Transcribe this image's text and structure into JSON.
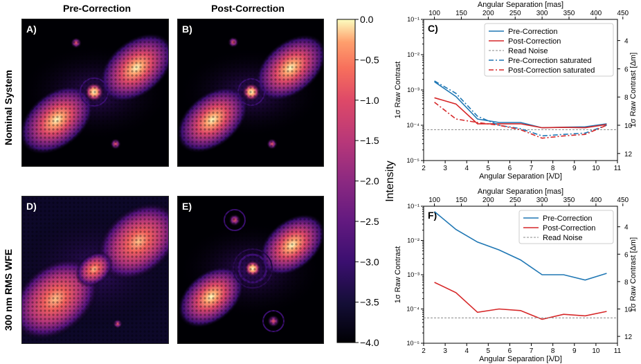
{
  "columns": {
    "pre": "Pre-Correction",
    "post": "Post-Correction"
  },
  "rows": {
    "nominal": "Nominal System",
    "wfe": "300 nm RMS WFE"
  },
  "panels": {
    "A": "A)",
    "B": "B)",
    "C": "C)",
    "D": "D)",
    "E": "E)",
    "F": "F)"
  },
  "colorbar": {
    "label": "Intensity",
    "ticks": [
      "0.0",
      "−0.5",
      "−1.0",
      "−1.5",
      "−2.0",
      "−2.5",
      "−3.0",
      "−3.5",
      "−4.0"
    ],
    "range": [
      -4.0,
      0.0
    ],
    "colormap": "magma"
  },
  "chart_data": [
    {
      "type": "line",
      "panel": "C)",
      "xlabel": "Angular Separation [λ/D]",
      "ylabel": "1σ Raw Contrast",
      "top_xlabel": "Angular Separation [mas]",
      "right_ylabel": "1σ Raw Contrast [Δm]",
      "xlim": [
        2,
        11
      ],
      "ylim": [
        1e-05,
        0.1
      ],
      "yscale": "log",
      "xticks": [
        "2",
        "3",
        "4",
        "5",
        "6",
        "7",
        "8",
        "9",
        "10",
        "11"
      ],
      "yticks": [
        "10⁻⁵",
        "10⁻⁴",
        "10⁻³",
        "10⁻²",
        "10⁻¹"
      ],
      "top_xticks": [
        "100",
        "150",
        "200",
        "250",
        "300",
        "350",
        "400",
        "450"
      ],
      "right_yticks": [
        "4",
        "6",
        "8",
        "10",
        "12"
      ],
      "legend_position": "top-right",
      "x": [
        2.5,
        3.5,
        4.5,
        5.5,
        6.5,
        7.5,
        8.5,
        9.5,
        10.5
      ],
      "series": [
        {
          "name": "Pre-Correction",
          "color": "#1f77b4",
          "dash": "solid",
          "values": [
            0.0017,
            0.00065,
            0.00015,
            0.00012,
            0.00012,
            8.5e-05,
            8.8e-05,
            9e-05,
            0.00011
          ]
        },
        {
          "name": "Post-Correction",
          "color": "#d62728",
          "dash": "solid",
          "values": [
            0.0006,
            0.0004,
            0.00011,
            0.00011,
            0.00011,
            8.5e-05,
            8.7e-05,
            8.5e-05,
            0.000105
          ]
        },
        {
          "name": "Read Noise",
          "color": "#888888",
          "dash": "dashed",
          "constant": 7.5e-05
        },
        {
          "name": "Pre-Correction saturated",
          "color": "#1f77b4",
          "dash": "dashdot",
          "values": [
            0.0018,
            0.0008,
            0.00018,
            0.0001,
            8e-05,
            5e-05,
            5.5e-05,
            6e-05,
            0.0001
          ]
        },
        {
          "name": "Post-Correction saturated",
          "color": "#d62728",
          "dash": "dashdot",
          "values": [
            0.00045,
            0.00015,
            0.00012,
            0.0001,
            7.5e-05,
            4.3e-05,
            5e-05,
            5.5e-05,
            0.0001
          ]
        }
      ]
    },
    {
      "type": "line",
      "panel": "F)",
      "xlabel": "Angular Separation [λ/D]",
      "ylabel": "1σ Raw Contrast",
      "top_xlabel": "Angular Separation [mas]",
      "right_ylabel": "1σ Raw Contrast [Δm]",
      "xlim": [
        2,
        11
      ],
      "ylim": [
        1e-05,
        0.1
      ],
      "yscale": "log",
      "xticks": [
        "2",
        "3",
        "4",
        "5",
        "6",
        "7",
        "8",
        "9",
        "10",
        "11"
      ],
      "yticks": [
        "10⁻⁵",
        "10⁻⁴",
        "10⁻³",
        "10⁻²",
        "10⁻¹"
      ],
      "top_xticks": [
        "100",
        "150",
        "200",
        "250",
        "300",
        "350",
        "400",
        "450"
      ],
      "right_yticks": [
        "4",
        "6",
        "8",
        "10",
        "12"
      ],
      "legend_position": "top-right",
      "x": [
        2.5,
        3.5,
        4.5,
        5.5,
        6.5,
        7.5,
        8.5,
        9.5,
        10.5
      ],
      "series": [
        {
          "name": "Pre-Correction",
          "color": "#1f77b4",
          "dash": "solid",
          "values": [
            0.07,
            0.021,
            0.009,
            0.0053,
            0.0027,
            0.001,
            0.001,
            0.0007,
            0.0011
          ]
        },
        {
          "name": "Post-Correction",
          "color": "#d62728",
          "dash": "solid",
          "values": [
            0.0006,
            0.0003,
            8e-05,
            0.0001,
            9e-05,
            5e-05,
            7e-05,
            6.3e-05,
            8.5e-05
          ]
        },
        {
          "name": "Read Noise",
          "color": "#888888",
          "dash": "dashed",
          "constant": 5.5e-05
        }
      ]
    }
  ]
}
